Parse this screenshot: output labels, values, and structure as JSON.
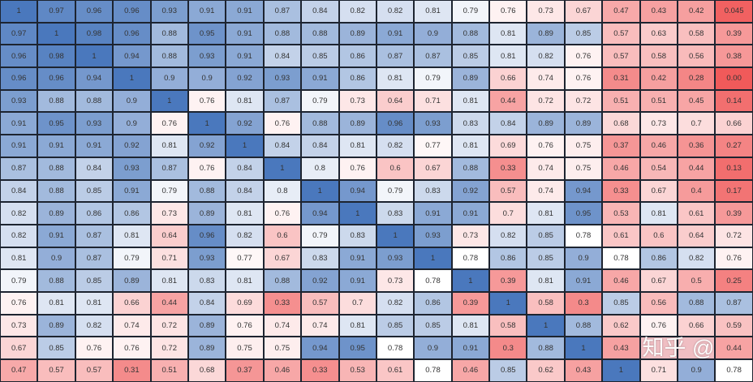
{
  "chart_data": {
    "type": "heatmap",
    "colors": {
      "high": "#4a78bd",
      "mid": "#ffffff",
      "low": "#f05a5a"
    },
    "matrix": [
      [
        1,
        0.97,
        0.96,
        0.96,
        0.93,
        0.91,
        0.91,
        0.87,
        0.84,
        0.82,
        0.82,
        0.81,
        0.79,
        0.76,
        0.73,
        0.67,
        0.47,
        0.43,
        0.42,
        0.045
      ],
      [
        0.97,
        1,
        0.98,
        0.96,
        0.88,
        0.95,
        0.91,
        0.88,
        0.88,
        0.89,
        0.91,
        0.9,
        0.88,
        0.81,
        0.89,
        0.85,
        0.57,
        0.63,
        0.58,
        0.39
      ],
      [
        0.96,
        0.98,
        1,
        0.94,
        0.88,
        0.93,
        0.91,
        0.84,
        0.85,
        0.86,
        0.87,
        0.87,
        0.85,
        0.81,
        0.82,
        0.76,
        0.57,
        0.58,
        0.56,
        0.38
      ],
      [
        0.96,
        0.96,
        0.94,
        1,
        0.9,
        0.9,
        0.92,
        0.93,
        0.91,
        0.86,
        0.81,
        0.79,
        0.89,
        0.66,
        0.74,
        0.76,
        0.31,
        0.42,
        0.28,
        0.0
      ],
      [
        0.93,
        0.88,
        0.88,
        0.9,
        1,
        0.76,
        0.81,
        0.87,
        0.79,
        0.73,
        0.64,
        0.71,
        0.81,
        0.44,
        0.72,
        0.72,
        0.51,
        0.51,
        0.45,
        0.14
      ],
      [
        0.91,
        0.95,
        0.93,
        0.9,
        0.76,
        1,
        0.92,
        0.76,
        0.88,
        0.89,
        0.96,
        0.93,
        0.83,
        0.84,
        0.89,
        0.89,
        0.68,
        0.73,
        0.7,
        0.66
      ],
      [
        0.91,
        0.91,
        0.91,
        0.92,
        0.81,
        0.92,
        1,
        0.84,
        0.84,
        0.81,
        0.82,
        0.77,
        0.81,
        0.69,
        0.76,
        0.75,
        0.37,
        0.46,
        0.36,
        0.27
      ],
      [
        0.87,
        0.88,
        0.84,
        0.93,
        0.87,
        0.76,
        0.84,
        1,
        0.8,
        0.76,
        0.6,
        0.67,
        0.88,
        0.33,
        0.74,
        0.75,
        0.46,
        0.54,
        0.44,
        0.13
      ],
      [
        0.84,
        0.88,
        0.85,
        0.91,
        0.79,
        0.88,
        0.84,
        0.8,
        1,
        0.94,
        0.79,
        0.83,
        0.92,
        0.57,
        0.74,
        0.94,
        0.33,
        0.67,
        0.4,
        0.17
      ],
      [
        0.82,
        0.89,
        0.86,
        0.86,
        0.73,
        0.89,
        0.81,
        0.76,
        0.94,
        1,
        0.83,
        0.91,
        0.91,
        0.7,
        0.81,
        0.95,
        0.53,
        0.81,
        0.61,
        0.39
      ],
      [
        0.82,
        0.91,
        0.87,
        0.81,
        0.64,
        0.96,
        0.82,
        0.6,
        0.79,
        0.83,
        1,
        0.93,
        0.73,
        0.82,
        0.85,
        0.78,
        0.61,
        0.6,
        0.64,
        0.72
      ],
      [
        0.81,
        0.9,
        0.87,
        0.79,
        0.71,
        0.93,
        0.77,
        0.67,
        0.83,
        0.91,
        0.93,
        1,
        0.78,
        0.86,
        0.85,
        0.9,
        0.78,
        0.86,
        0.82,
        0.76
      ],
      [
        0.79,
        0.88,
        0.85,
        0.89,
        0.81,
        0.83,
        0.81,
        0.88,
        0.92,
        0.91,
        0.73,
        0.78,
        1,
        0.39,
        0.81,
        0.91,
        0.46,
        0.67,
        0.5,
        0.25
      ],
      [
        0.76,
        0.81,
        0.81,
        0.66,
        0.44,
        0.84,
        0.69,
        0.33,
        0.57,
        0.7,
        0.82,
        0.86,
        0.39,
        1,
        0.58,
        0.3,
        0.85,
        0.56,
        0.88,
        0.87
      ],
      [
        0.73,
        0.89,
        0.82,
        0.74,
        0.72,
        0.89,
        0.76,
        0.74,
        0.74,
        0.81,
        0.85,
        0.85,
        0.81,
        0.58,
        1,
        0.88,
        0.62,
        0.76,
        0.66,
        0.59
      ],
      [
        0.67,
        0.85,
        0.76,
        0.76,
        0.72,
        0.89,
        0.75,
        0.75,
        0.94,
        0.95,
        0.78,
        0.9,
        0.91,
        0.3,
        0.88,
        1,
        0.43,
        null,
        null,
        0.44
      ],
      [
        0.47,
        0.57,
        0.57,
        0.31,
        0.51,
        0.68,
        0.37,
        0.46,
        0.33,
        0.53,
        0.61,
        0.78,
        0.46,
        0.85,
        0.62,
        0.43,
        1,
        0.71,
        0.9,
        0.78
      ]
    ]
  },
  "watermark": "知乎 @"
}
